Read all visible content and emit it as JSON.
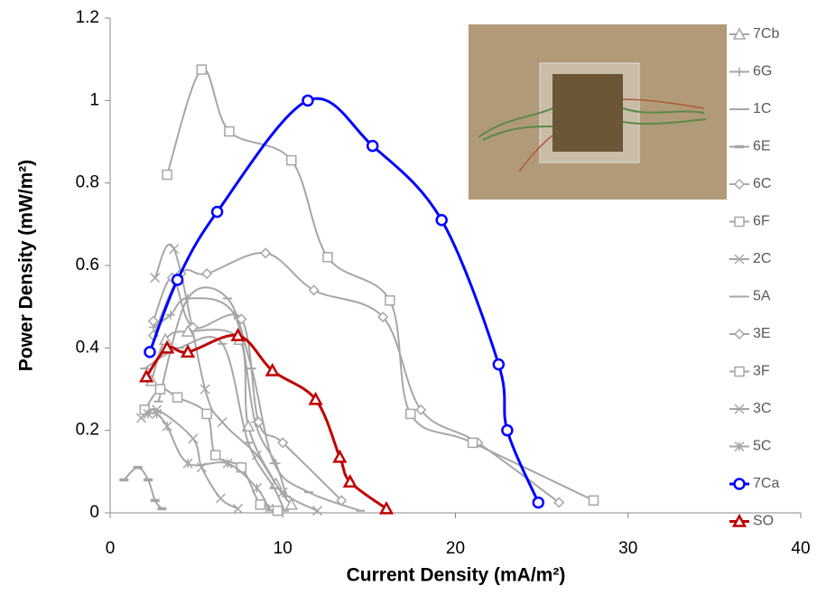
{
  "chart_data": {
    "type": "line",
    "x_label": "Current Density (mA/m²)",
    "y_label": "Power Density (mW/m²)",
    "xlim": [
      0,
      40
    ],
    "xticks": [
      0,
      10,
      20,
      30,
      40
    ],
    "ylim": [
      0,
      1.2
    ],
    "yticks": [
      0,
      0.2,
      0.4,
      0.6,
      0.8,
      1,
      1.2
    ],
    "grid": false,
    "legend": "right",
    "series": [
      {
        "name": "7Cb",
        "color": "#a6a6a6",
        "marker": "triangle",
        "x": [
          2.4,
          3.2,
          4.5,
          7.5,
          8.0,
          9.6,
          10.5
        ],
        "values": [
          0.32,
          0.42,
          0.44,
          0.42,
          0.21,
          0.07,
          0.02
        ]
      },
      {
        "name": "6G",
        "color": "#a6a6a6",
        "marker": "plus",
        "x": [
          2.5,
          3.5,
          4.5,
          7.2,
          8.4,
          9.6,
          10.2
        ],
        "values": [
          0.45,
          0.48,
          0.52,
          0.48,
          0.22,
          0.12,
          0.04
        ]
      },
      {
        "name": "1C",
        "color": "#a6a6a6",
        "marker": "dash",
        "x": [
          2.0,
          4.0,
          6.5,
          8.0,
          9.5,
          10.1
        ],
        "values": [
          0.35,
          0.4,
          0.41,
          0.17,
          0.06,
          0.005
        ]
      },
      {
        "name": "6E",
        "color": "#a6a6a6",
        "marker": "bar",
        "x": [
          0.8,
          1.6,
          2.2,
          2.6,
          3.0
        ],
        "values": [
          0.08,
          0.11,
          0.08,
          0.03,
          0.01
        ]
      },
      {
        "name": "6C",
        "color": "#a6a6a6",
        "marker": "diamond",
        "x": [
          2.5,
          4.1,
          5.6,
          9.0,
          11.8,
          15.8,
          18.0,
          21.3,
          26.0
        ],
        "values": [
          0.43,
          0.58,
          0.58,
          0.63,
          0.54,
          0.475,
          0.25,
          0.17,
          0.025
        ]
      },
      {
        "name": "6F",
        "color": "#a6a6a6",
        "marker": "square",
        "x": [
          3.3,
          5.3,
          6.9,
          10.5,
          12.6,
          16.2,
          17.4,
          21.0,
          28.0
        ],
        "values": [
          0.82,
          1.075,
          0.925,
          0.855,
          0.62,
          0.515,
          0.24,
          0.17,
          0.03
        ]
      },
      {
        "name": "2C",
        "color": "#a6a6a6",
        "marker": "cross",
        "x": [
          2.6,
          3.7,
          5.5,
          6.5,
          8.5,
          10.0,
          12.0
        ],
        "values": [
          0.57,
          0.64,
          0.3,
          0.22,
          0.14,
          0.05,
          0.005
        ]
      },
      {
        "name": "5A",
        "color": "#a6a6a6",
        "marker": "dash",
        "x": [
          2.8,
          4.5,
          6.8,
          8.2,
          9.5,
          11.5,
          14.5
        ],
        "values": [
          0.27,
          0.52,
          0.52,
          0.35,
          0.12,
          0.05,
          0.005
        ]
      },
      {
        "name": "3E",
        "color": "#a6a6a6",
        "marker": "diamond",
        "x": [
          2.5,
          3.6,
          4.8,
          7.6,
          8.6,
          10.0,
          13.4
        ],
        "values": [
          0.465,
          0.57,
          0.45,
          0.47,
          0.22,
          0.17,
          0.03
        ]
      },
      {
        "name": "3F",
        "color": "#a6a6a6",
        "marker": "square",
        "x": [
          2.0,
          2.9,
          3.9,
          5.6,
          6.1,
          7.6,
          8.7,
          9.7
        ],
        "values": [
          0.25,
          0.3,
          0.28,
          0.24,
          0.14,
          0.11,
          0.02,
          0.005
        ]
      },
      {
        "name": "3C",
        "color": "#a6a6a6",
        "marker": "cross",
        "x": [
          1.8,
          2.7,
          4.8,
          5.3,
          6.4,
          7.4
        ],
        "values": [
          0.23,
          0.25,
          0.18,
          0.11,
          0.035,
          0.01
        ]
      },
      {
        "name": "5C",
        "color": "#a6a6a6",
        "marker": "star",
        "x": [
          2.2,
          2.7,
          3.3,
          4.5,
          6.8,
          8.5,
          9.2
        ],
        "values": [
          0.24,
          0.24,
          0.21,
          0.12,
          0.12,
          0.06,
          0.01
        ]
      },
      {
        "name": "7Ca",
        "color": "#0000ff",
        "marker": "circle",
        "x": [
          2.3,
          3.9,
          6.2,
          11.45,
          15.2,
          19.2,
          22.5,
          23.0,
          24.8
        ],
        "values": [
          0.39,
          0.565,
          0.73,
          1.0,
          0.89,
          0.71,
          0.36,
          0.2,
          0.025
        ]
      },
      {
        "name": "SO",
        "color": "#c00000",
        "marker": "triangle",
        "x": [
          2.1,
          3.3,
          4.5,
          7.4,
          9.4,
          11.9,
          13.3,
          13.9,
          16.0
        ],
        "values": [
          0.33,
          0.4,
          0.39,
          0.43,
          0.345,
          0.275,
          0.135,
          0.075,
          0.01
        ]
      }
    ]
  }
}
